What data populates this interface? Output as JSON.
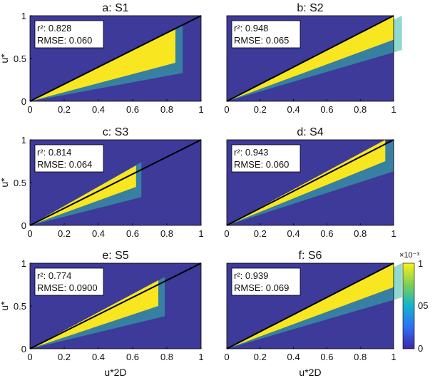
{
  "colors": {
    "background": "#3d3a99",
    "low": "#3e49b5",
    "mid": "#1e9fd0",
    "teal": "#35b9a8",
    "high": "#f8e620",
    "fit_line": "#000000"
  },
  "chart_data": [
    {
      "type": "heatmap",
      "panel": "a",
      "title": "a: S1",
      "r2_label": "r²: 0.828",
      "rmse_label": "RMSE: 0.060",
      "xlim": [
        0,
        1
      ],
      "ylim": [
        0,
        1
      ],
      "xticks": [
        "0",
        "0.2",
        "0.4",
        "0.6",
        "0.8",
        "1"
      ],
      "yticks": [
        "0",
        "0.5",
        "1"
      ],
      "ylabel": "u*",
      "xlabel": "",
      "reference_line": "y = x",
      "band": {
        "x_max": 0.85,
        "y_upper_at_x_max": 0.85,
        "y_lower_at_x_max": 0.45
      }
    },
    {
      "type": "heatmap",
      "panel": "b",
      "title": "b: S2",
      "r2_label": "r²: 0.948",
      "rmse_label": "RMSE: 0.065",
      "xlim": [
        0,
        1
      ],
      "ylim": [
        0,
        1
      ],
      "xticks": [
        "0",
        "0.2",
        "0.4",
        "0.6",
        "0.8",
        "1"
      ],
      "yticks": [],
      "ylabel": "",
      "xlabel": "",
      "reference_line": "y = x",
      "band": {
        "x_max": 1.0,
        "y_upper_at_x_max": 1.0,
        "y_lower_at_x_max": 0.72
      }
    },
    {
      "type": "heatmap",
      "panel": "c",
      "title": "c: S3",
      "r2_label": "r²: 0.814",
      "rmse_label": "RMSE: 0.064",
      "xlim": [
        0,
        1
      ],
      "ylim": [
        0,
        1
      ],
      "xticks": [
        "0",
        "0.2",
        "0.4",
        "0.6",
        "0.8",
        "1"
      ],
      "yticks": [
        "0",
        "0.5",
        "1"
      ],
      "ylabel": "u*",
      "xlabel": "",
      "reference_line": "y = x",
      "band": {
        "x_max": 0.62,
        "y_upper_at_x_max": 0.7,
        "y_lower_at_x_max": 0.45
      }
    },
    {
      "type": "heatmap",
      "panel": "d",
      "title": "d: S4",
      "r2_label": "r²: 0.943",
      "rmse_label": "RMSE: 0.060",
      "xlim": [
        0,
        1
      ],
      "ylim": [
        0,
        1
      ],
      "xticks": [
        "0",
        "0.2",
        "0.4",
        "0.6",
        "0.8",
        "1"
      ],
      "yticks": [],
      "ylabel": "",
      "xlabel": "",
      "reference_line": "y = x",
      "band": {
        "x_max": 0.95,
        "y_upper_at_x_max": 1.0,
        "y_lower_at_x_max": 0.75
      }
    },
    {
      "type": "heatmap",
      "panel": "e",
      "title": "e: S5",
      "r2_label": "r²: 0.774",
      "rmse_label": "RMSE: 0.0900",
      "xlim": [
        0,
        1
      ],
      "ylim": [
        0,
        1
      ],
      "xticks": [
        "0",
        "0.2",
        "0.4",
        "0.6",
        "0.8",
        "1"
      ],
      "yticks": [
        "0",
        "0.5",
        "1"
      ],
      "ylabel": "u*",
      "xlabel": "u*2D",
      "reference_line": "y = x",
      "band": {
        "x_max": 0.75,
        "y_upper_at_x_max": 0.8,
        "y_lower_at_x_max": 0.5
      }
    },
    {
      "type": "heatmap",
      "panel": "f",
      "title": "f: S6",
      "r2_label": "r²: 0.939",
      "rmse_label": "RMSE: 0.069",
      "xlim": [
        0,
        1
      ],
      "ylim": [
        0,
        1
      ],
      "xticks": [
        "0",
        "0.2",
        "0.4",
        "0.6",
        "0.8",
        "1"
      ],
      "yticks": [],
      "ylabel": "",
      "xlabel": "u*2D",
      "reference_line": "y = x",
      "band": {
        "x_max": 1.0,
        "y_upper_at_x_max": 1.0,
        "y_lower_at_x_max": 0.72
      }
    }
  ],
  "colorbar": {
    "multiplier": "×10⁻³",
    "ticks": [
      "1",
      "05",
      "0"
    ],
    "range": [
      0,
      1
    ]
  }
}
